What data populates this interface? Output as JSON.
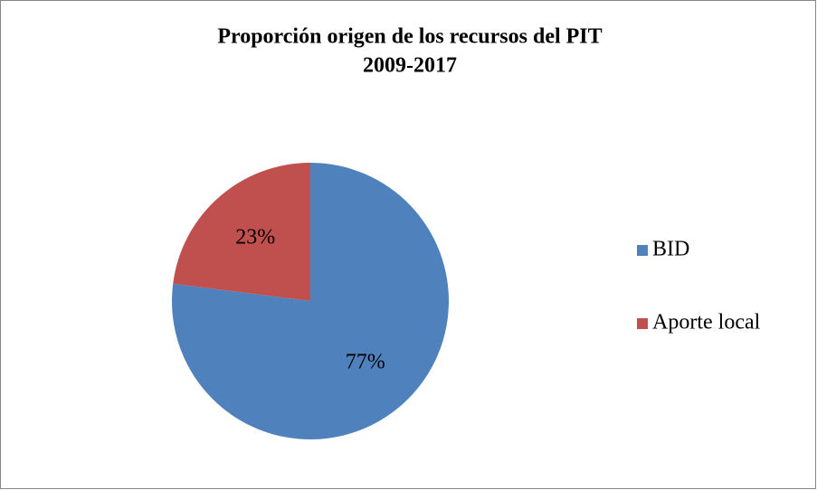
{
  "chart_data": {
    "type": "pie",
    "title": "Proporción origen de los recursos del PIT",
    "subtitle": "2009-2017",
    "categories": [
      "BID",
      "Aporte local"
    ],
    "values": [
      77,
      23
    ],
    "value_labels": [
      "77%",
      "23%"
    ],
    "colors": [
      "#4f81bd",
      "#c0504d"
    ],
    "legend": "right"
  }
}
